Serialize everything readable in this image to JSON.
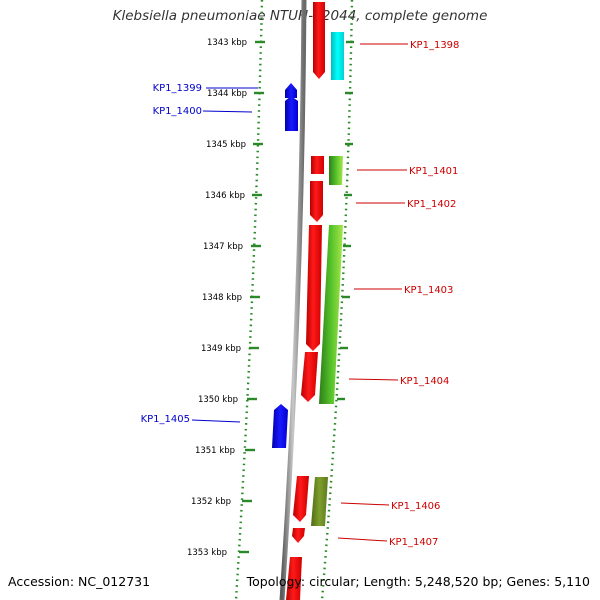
{
  "title": "Klebsiella pneumoniae NTUH-K2044, complete genome",
  "accession": "Accession: NC_012731",
  "summary": "Topology: circular; Length: 5,248,520 bp; Genes: 5,110",
  "colors": {
    "forward_cds": "#ff0000",
    "reverse_cds": "#0000ee",
    "cyan_feature": "#00e5e5",
    "green_feature": "#44bb22",
    "olive_feature": "#6b8e23",
    "scale_ticks": "#2a8a2a",
    "backbone": "#888888",
    "forward_label": "#cc0000",
    "reverse_label": "#0000cc"
  },
  "scale_labels": [
    "1343 kbp",
    "1344 kbp",
    "1345 kbp",
    "1346 kbp",
    "1347 kbp",
    "1348 kbp",
    "1349 kbp",
    "1350 kbp",
    "1351 kbp",
    "1352 kbp",
    "1353 kbp"
  ],
  "genes": [
    {
      "label": "KP1_1398",
      "strand": "forward"
    },
    {
      "label": "KP1_1399",
      "strand": "reverse"
    },
    {
      "label": "KP1_1400",
      "strand": "reverse"
    },
    {
      "label": "KP1_1401",
      "strand": "forward"
    },
    {
      "label": "KP1_1402",
      "strand": "forward"
    },
    {
      "label": "KP1_1403",
      "strand": "forward"
    },
    {
      "label": "KP1_1404",
      "strand": "forward"
    },
    {
      "label": "KP1_1405",
      "strand": "reverse"
    },
    {
      "label": "KP1_1406",
      "strand": "forward"
    },
    {
      "label": "KP1_1407",
      "strand": "forward"
    }
  ]
}
